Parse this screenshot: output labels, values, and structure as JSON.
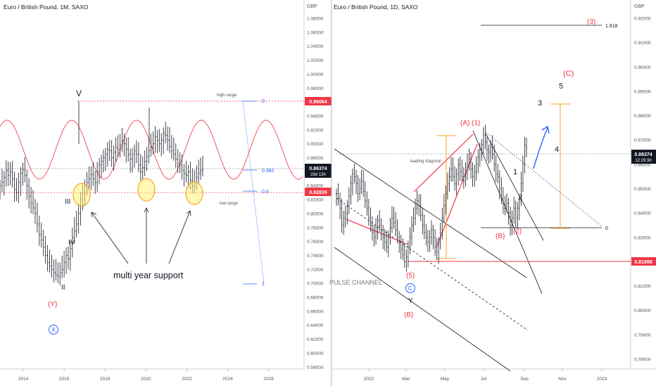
{
  "chart_data": [
    {
      "type": "line",
      "title": "Euro / British Pound, 1M, SAXO",
      "currency": "GBP",
      "x_ticks": [
        "2014",
        "2016",
        "2018",
        "2020",
        "2022",
        "2024",
        "2026"
      ],
      "y_ticks": [
        "1.08000",
        "1.06000",
        "1.04000",
        "1.02000",
        "1.00000",
        "0.98000",
        "0.96000",
        "0.94000",
        "0.92000",
        "0.90000",
        "0.88000",
        "0.86000",
        "0.84000",
        "0.82000",
        "0.80000",
        "0.78000",
        "0.76000",
        "0.74000",
        "0.72000",
        "0.70000",
        "0.68000",
        "0.66000",
        "0.64000",
        "0.62000",
        "0.60000",
        "0.58000"
      ],
      "ylim": [
        0.57,
        1.09
      ],
      "price_badges": [
        {
          "label": "0.96064",
          "color": "#f23645"
        },
        {
          "label": "0.86374",
          "color": "#131722"
        },
        {
          "label": "0.82839",
          "color": "#f23645"
        }
      ],
      "countdown": "28d 13h",
      "fib_levels": [
        {
          "label": "0",
          "value": 0.96064
        },
        {
          "label": "0.382",
          "value": 0.874
        },
        {
          "label": "0.5",
          "value": 0.8484
        },
        {
          "label": "1",
          "value": 0.7021
        }
      ],
      "range_labels": {
        "high": "high range",
        "low": "low range"
      },
      "wave_labels": [
        "V",
        "III",
        "IV",
        "II",
        "(Y)",
        "X"
      ],
      "annotation": "multi year support",
      "series": [
        {
          "values": [
            0.84,
            0.845,
            0.852,
            0.862,
            0.855,
            0.86,
            0.85,
            0.835,
            0.83,
            0.845,
            0.858,
            0.863,
            0.855,
            0.84,
            0.825,
            0.815,
            0.808,
            0.8,
            0.785,
            0.77,
            0.762,
            0.752,
            0.74,
            0.73,
            0.725,
            0.72,
            0.715,
            0.712,
            0.71,
            0.715,
            0.72,
            0.73,
            0.74,
            0.735,
            0.75,
            0.765,
            0.775,
            0.785,
            0.8,
            0.82,
            0.83,
            0.84,
            0.845,
            0.85,
            0.856,
            0.85,
            0.845,
            0.86,
            0.87,
            0.875,
            0.88,
            0.885,
            0.892,
            0.89,
            0.88,
            0.888,
            0.895,
            0.892,
            0.898,
            0.905,
            0.9,
            0.892,
            0.885,
            0.878,
            0.885,
            0.89,
            0.885,
            0.87,
            0.86,
            0.866,
            0.875,
            0.882,
            0.89,
            0.895,
            0.9,
            0.91,
            0.905,
            0.9,
            0.905,
            0.915,
            0.912,
            0.905,
            0.896,
            0.89,
            0.885,
            0.878,
            0.872,
            0.87,
            0.862,
            0.858,
            0.855,
            0.86,
            0.848,
            0.84,
            0.845,
            0.852,
            0.858,
            0.862,
            0.864
          ]
        }
      ]
    },
    {
      "type": "line",
      "title": "Euro / British Pound, 1D, SAXO",
      "currency": "GBP",
      "x_ticks": [
        "2022",
        "Mar",
        "May",
        "Jul",
        "Sep",
        "Nov",
        "2023"
      ],
      "y_ticks": [
        "0.92000",
        "0.91000",
        "0.90000",
        "0.89000",
        "0.88000",
        "0.87000",
        "0.86000",
        "0.85000",
        "0.84000",
        "0.83000",
        "0.82000",
        "0.81000",
        "0.80000",
        "0.79000",
        "0.78000"
      ],
      "ylim": [
        0.775,
        0.925
      ],
      "price_badges": [
        {
          "label": "0.86374",
          "color": "#131722"
        },
        {
          "label": "0.81988",
          "color": "#f23645"
        }
      ],
      "countdown": "12:29:30",
      "fib_levels": [
        {
          "label": "1.618",
          "value": 0.9165
        },
        {
          "label": "0",
          "value": 0.834
        }
      ],
      "pattern_labels": [
        "leading diagonal",
        "PULSE CHANNEL"
      ],
      "wave_labels": [
        "(3)",
        "(C)",
        "5",
        "3",
        "4",
        "(A)",
        "(1)",
        "1",
        "2",
        "(B)",
        "(2)",
        "(5)",
        "C",
        "Y",
        "(B)"
      ],
      "series": [
        {
          "values": [
            0.848,
            0.846,
            0.842,
            0.835,
            0.838,
            0.84,
            0.843,
            0.847,
            0.852,
            0.856,
            0.855,
            0.852,
            0.848,
            0.85,
            0.853,
            0.849,
            0.845,
            0.842,
            0.838,
            0.835,
            0.832,
            0.83,
            0.834,
            0.837,
            0.835,
            0.833,
            0.83,
            0.828,
            0.826,
            0.83,
            0.834,
            0.838,
            0.836,
            0.833,
            0.83,
            0.828,
            0.825,
            0.823,
            0.82,
            0.822,
            0.826,
            0.83,
            0.835,
            0.838,
            0.842,
            0.845,
            0.843,
            0.839,
            0.835,
            0.832,
            0.83,
            0.828,
            0.83,
            0.833,
            0.83,
            0.826,
            0.824,
            0.828,
            0.832,
            0.838,
            0.843,
            0.848,
            0.852,
            0.855,
            0.858,
            0.855,
            0.852,
            0.856,
            0.86,
            0.857,
            0.855,
            0.853,
            0.856,
            0.86,
            0.862,
            0.858,
            0.855,
            0.857,
            0.86,
            0.863,
            0.866,
            0.868,
            0.872,
            0.869,
            0.866,
            0.865,
            0.867,
            0.864,
            0.86,
            0.856,
            0.855,
            0.85,
            0.846,
            0.842,
            0.843,
            0.844,
            0.84,
            0.835,
            0.838,
            0.842,
            0.838,
            0.842,
            0.845,
            0.852,
            0.86,
            0.868,
            0.867
          ]
        }
      ]
    }
  ]
}
